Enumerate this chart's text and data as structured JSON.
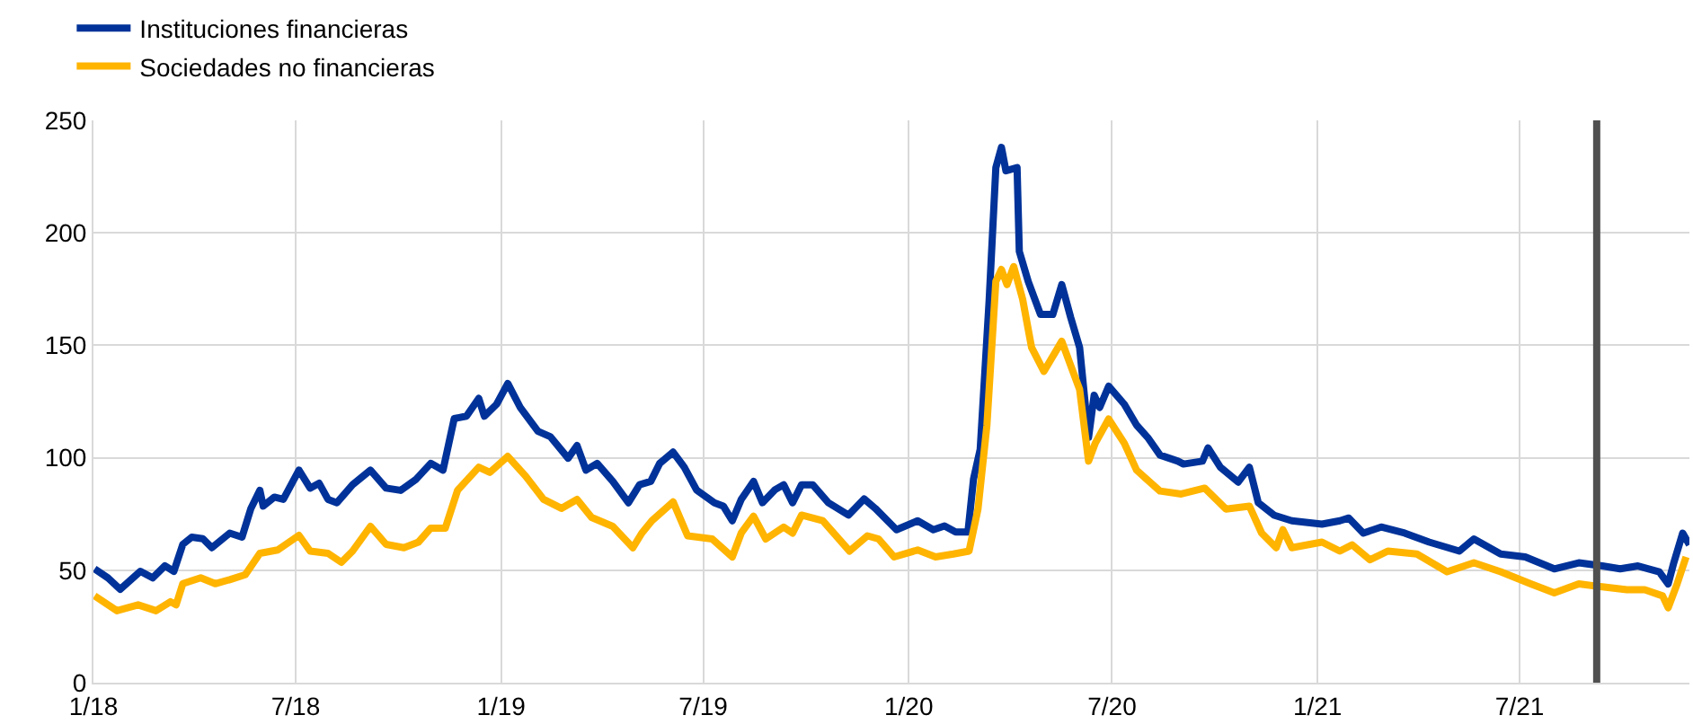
{
  "chart_data": {
    "type": "line",
    "series": [
      {
        "name": "Instituciones financieras",
        "color": "#003299",
        "x": [
          "2018-01-02",
          "2018-01-14",
          "2018-01-25",
          "2018-02-12",
          "2018-02-23",
          "2018-03-06",
          "2018-03-14",
          "2018-03-22",
          "2018-03-30",
          "2018-04-09",
          "2018-04-17",
          "2018-05-03",
          "2018-05-14",
          "2018-05-22",
          "2018-05-30",
          "2018-06-02",
          "2018-06-12",
          "2018-06-20",
          "2018-07-04",
          "2018-07-14",
          "2018-07-22",
          "2018-07-30",
          "2018-08-07",
          "2018-08-21",
          "2018-09-06",
          "2018-09-20",
          "2018-10-03",
          "2018-10-17",
          "2018-10-30",
          "2018-11-10",
          "2018-11-20",
          "2018-12-01",
          "2018-12-12",
          "2018-12-17",
          "2018-12-28",
          "2019-01-07",
          "2019-01-18",
          "2019-02-03",
          "2019-02-14",
          "2019-03-02",
          "2019-03-10",
          "2019-03-18",
          "2019-03-28",
          "2019-04-11",
          "2019-04-25",
          "2019-05-05",
          "2019-05-15",
          "2019-05-23",
          "2019-06-04",
          "2019-06-14",
          "2019-06-25",
          "2019-07-11",
          "2019-07-19",
          "2019-07-27",
          "2019-08-04",
          "2019-08-15",
          "2019-08-23",
          "2019-09-03",
          "2019-09-11",
          "2019-09-19",
          "2019-09-27",
          "2019-10-07",
          "2019-10-21",
          "2019-11-08",
          "2019-11-22",
          "2019-12-02",
          "2019-12-21",
          "2020-01-09",
          "2020-01-23",
          "2020-02-02",
          "2020-02-12",
          "2020-02-23",
          "2020-02-28",
          "2020-03-05",
          "2020-03-13",
          "2020-03-19",
          "2020-03-24",
          "2020-03-28",
          "2020-04-07",
          "2020-04-09",
          "2020-04-17",
          "2020-04-28",
          "2020-05-09",
          "2020-05-17",
          "2020-05-25",
          "2020-06-02",
          "2020-06-10",
          "2020-06-15",
          "2020-06-20",
          "2020-06-28",
          "2020-07-12",
          "2020-07-23",
          "2020-08-02",
          "2020-08-13",
          "2020-08-29",
          "2020-09-03",
          "2020-09-20",
          "2020-09-25",
          "2020-10-06",
          "2020-10-22",
          "2020-11-01",
          "2020-11-09",
          "2020-11-23",
          "2020-12-09",
          "2021-01-05",
          "2021-01-21",
          "2021-01-29",
          "2021-02-11",
          "2021-02-27",
          "2021-03-20",
          "2021-04-11",
          "2021-05-08",
          "2021-05-21",
          "2021-06-14",
          "2021-07-06",
          "2021-08-01",
          "2021-08-23",
          "2021-09-13",
          "2021-09-29",
          "2021-10-15",
          "2021-11-03",
          "2021-11-11",
          "2021-11-16",
          "2021-11-24",
          "2021-11-30"
        ],
        "values": [
          50.6,
          46.6,
          41.5,
          49.5,
          46.6,
          52,
          49.5,
          61.5,
          64.7,
          64,
          60,
          66.5,
          64.7,
          77.5,
          85.5,
          78.5,
          82.5,
          81.5,
          94.5,
          86.5,
          88.7,
          81.5,
          80,
          88,
          94.5,
          86.5,
          85.5,
          90.5,
          97.5,
          94.5,
          117.4,
          118.5,
          126.4,
          118.5,
          123.8,
          133,
          122.5,
          111.8,
          109.4,
          99.8,
          105.4,
          94.5,
          97.5,
          89.5,
          80,
          88,
          89.5,
          97.5,
          102.5,
          95.8,
          85.7,
          80,
          78.5,
          72,
          81.5,
          89.5,
          80,
          85.7,
          88,
          80,
          88,
          88,
          80,
          74.5,
          81.7,
          77.5,
          68,
          72,
          68,
          69.7,
          67,
          67,
          90.5,
          103.8,
          170,
          229,
          238,
          227.6,
          229,
          191.7,
          178.4,
          163.7,
          163.7,
          177,
          162.4,
          149,
          109,
          127.8,
          122.4,
          131.8,
          123.8,
          114.5,
          109,
          101.2,
          98.5,
          97.2,
          98.5,
          104.4,
          95.8,
          89.2,
          95.8,
          80,
          74.5,
          72,
          70.5,
          72,
          73.2,
          66.5,
          69.2,
          66.5,
          62.5,
          58.5,
          63.9,
          57.2,
          55.9,
          50.6,
          53.3,
          51.9,
          50.6,
          51.9,
          49.3,
          43.9,
          53.3,
          66.5,
          61.3
        ]
      },
      {
        "name": "Sociedades no financieras",
        "color": "#ffb400",
        "x": [
          "2018-01-02",
          "2018-01-22",
          "2018-02-10",
          "2018-02-26",
          "2018-03-11",
          "2018-03-16",
          "2018-03-22",
          "2018-04-07",
          "2018-04-20",
          "2018-05-03",
          "2018-05-17",
          "2018-05-30",
          "2018-06-15",
          "2018-07-04",
          "2018-07-14",
          "2018-07-30",
          "2018-08-11",
          "2018-08-21",
          "2018-09-06",
          "2018-09-20",
          "2018-10-06",
          "2018-10-19",
          "2018-10-30",
          "2018-11-12",
          "2018-11-23",
          "2018-12-12",
          "2018-12-22",
          "2019-01-07",
          "2019-01-23",
          "2019-02-08",
          "2019-02-24",
          "2019-03-10",
          "2019-03-23",
          "2019-04-11",
          "2019-04-29",
          "2019-05-07",
          "2019-05-16",
          "2019-06-04",
          "2019-06-17",
          "2019-07-09",
          "2019-07-27",
          "2019-08-04",
          "2019-08-15",
          "2019-08-26",
          "2019-09-11",
          "2019-09-19",
          "2019-09-27",
          "2019-10-16",
          "2019-11-09",
          "2019-11-25",
          "2019-12-05",
          "2019-12-19",
          "2020-01-09",
          "2020-01-25",
          "2020-02-10",
          "2020-02-24",
          "2020-03-03",
          "2020-03-11",
          "2020-03-19",
          "2020-03-24",
          "2020-03-29",
          "2020-04-04",
          "2020-04-12",
          "2020-04-20",
          "2020-05-01",
          "2020-05-17",
          "2020-05-25",
          "2020-06-02",
          "2020-06-10",
          "2020-06-16",
          "2020-06-28",
          "2020-07-12",
          "2020-07-23",
          "2020-08-13",
          "2020-09-01",
          "2020-09-22",
          "2020-10-11",
          "2020-11-01",
          "2020-11-12",
          "2020-11-25",
          "2020-12-01",
          "2020-12-09",
          "2021-01-05",
          "2021-01-21",
          "2021-02-01",
          "2021-02-17",
          "2021-03-05",
          "2021-03-31",
          "2021-04-27",
          "2021-05-21",
          "2021-06-14",
          "2021-07-11",
          "2021-08-01",
          "2021-08-23",
          "2021-09-13",
          "2021-10-05",
          "2021-10-21",
          "2021-11-06",
          "2021-11-11",
          "2021-11-19",
          "2021-11-27"
        ],
        "values": [
          38.6,
          32,
          34.6,
          32,
          36,
          34.6,
          44,
          46.6,
          44,
          45.8,
          48,
          57.5,
          59,
          65.5,
          58.5,
          57.5,
          53.5,
          58.5,
          69.5,
          61.5,
          60,
          62.5,
          68.7,
          68.7,
          85.5,
          95.8,
          93.5,
          100.6,
          91.8,
          81.5,
          77.5,
          81.5,
          73.5,
          69.5,
          60,
          66.5,
          72,
          80.4,
          65.3,
          63.9,
          55.9,
          66.5,
          74,
          63.9,
          69.2,
          66.5,
          74.5,
          72,
          58.5,
          65.3,
          63.9,
          55.9,
          59,
          55.9,
          57.2,
          58.5,
          77.2,
          114.5,
          178.4,
          183.7,
          177,
          185,
          170.4,
          149,
          138.4,
          151.8,
          141,
          130.4,
          98.5,
          106.5,
          117.2,
          106.5,
          94.5,
          85.2,
          83.9,
          86.5,
          77.2,
          78.5,
          66.5,
          60,
          68,
          60,
          62.5,
          58.5,
          61.3,
          54.6,
          58.5,
          57.2,
          49.3,
          53.3,
          49.3,
          43.9,
          39.9,
          43.9,
          42.6,
          41.3,
          41.3,
          38.6,
          33.3,
          43.9,
          55.9
        ]
      }
    ],
    "xlim": [
      "2018-01-01",
      "2021-11-30"
    ],
    "xticks": [
      {
        "value": "2018-01-01",
        "label": "1/18"
      },
      {
        "value": "2018-07-01",
        "label": "7/18"
      },
      {
        "value": "2019-01-01",
        "label": "1/19"
      },
      {
        "value": "2019-07-01",
        "label": "7/19"
      },
      {
        "value": "2020-01-01",
        "label": "1/20"
      },
      {
        "value": "2020-07-01",
        "label": "7/20"
      },
      {
        "value": "2021-01-01",
        "label": "1/21"
      },
      {
        "value": "2021-07-01",
        "label": "7/21"
      }
    ],
    "ylim": [
      0,
      250
    ],
    "yticks": [
      0,
      50,
      100,
      150,
      200,
      250
    ],
    "ref_lines": [
      {
        "axis": "x",
        "value": "2021-09-08",
        "color": "#505050",
        "line_style": "solid"
      }
    ],
    "grid": true,
    "legend": "top left",
    "line_style": "solid",
    "marker": "none"
  }
}
